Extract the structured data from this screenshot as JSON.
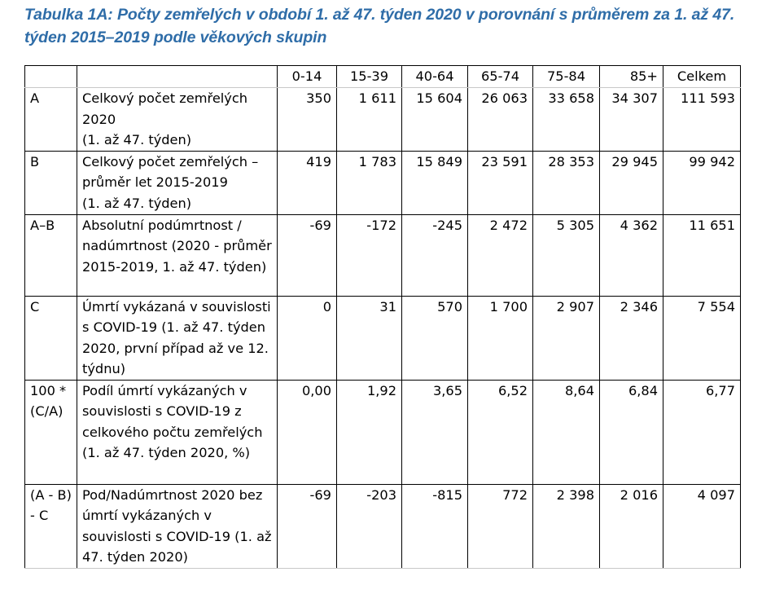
{
  "caption": "Tabulka 1A: Počty zemřelých v období 1. až 47. týden 2020 v porovnání s průměrem za 1. až 47. týden 2015–2019 podle věkových skupin",
  "headers": [
    "",
    "",
    "0-14",
    "15-39",
    "40-64",
    "65-74",
    "75-84",
    "85+",
    "Celkem"
  ],
  "rows": [
    {
      "code": "A",
      "desc": "Celkový počet zemřelých 2020\n(1. až 47. týden)",
      "values": [
        "350",
        "1 611",
        "15 604",
        "26 063",
        "33 658",
        "34 307",
        "111 593"
      ]
    },
    {
      "code": "B",
      "desc": "Celkový počet zemřelých – průměr let 2015-2019\n(1. až 47. týden)",
      "values": [
        "419",
        "1 783",
        "15 849",
        "23 591",
        "28 353",
        "29 945",
        "99 942"
      ]
    },
    {
      "code": "A–B",
      "desc": "Absolutní podúmrtnost / nadúmrtnost (2020 - průměr 2015-2019, 1. až 47. týden)",
      "values": [
        "-69",
        "-172",
        "-245",
        "2 472",
        "5 305",
        "4 362",
        "11 651"
      ]
    },
    {
      "code": "C",
      "desc": "Úmrtí vykázaná v souvislosti s COVID-19 (1. až 47. týden 2020, první případ až ve 12. týdnu)",
      "values": [
        "0",
        "31",
        "570",
        "1 700",
        "2 907",
        "2 346",
        "7 554"
      ]
    },
    {
      "code": "100 * (C/A)",
      "desc": "Podíl úmrtí vykázaných v souvislosti s COVID-19 z celkového počtu zemřelých (1. až 47. týden 2020, %)",
      "values": [
        "0,00",
        "1,92",
        "3,65",
        "6,52",
        "8,64",
        "6,84",
        "6,77"
      ]
    },
    {
      "code": "(A - B) - C",
      "desc": "Pod/Nadúmrtnost 2020 bez úmrtí vykázaných v souvislosti s COVID-19 (1. až 47. týden 2020)",
      "values": [
        "-69",
        "-203",
        "-815",
        "772",
        "2 398",
        "2 016",
        "4 097"
      ]
    }
  ]
}
